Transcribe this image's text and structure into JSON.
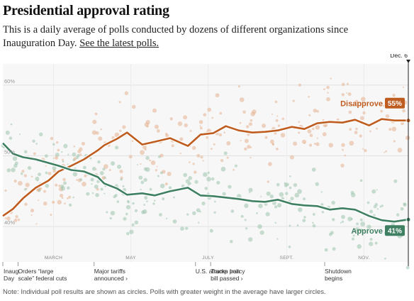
{
  "header": {
    "title": "Presidential approval rating",
    "subtitle": "This is a daily average of polls conducted by dozens of different organizations since Inauguration Day.",
    "link": "See the latest polls."
  },
  "note": "Note: Individual poll results are shown as circles. Polls with greater weight in the average have larger circles.",
  "colors": {
    "approve": "#3f7f62",
    "disapprove": "#bf5c1f",
    "approve_dots": "#9cc4ad",
    "disapprove_dots": "#e6b08e"
  },
  "chart_data": {
    "type": "line",
    "title": "Presidential approval rating",
    "y_unit": "%",
    "ylim": [
      35,
      63
    ],
    "y_ticks": [
      40,
      50,
      60
    ],
    "y_tick_labels": [
      "40%",
      "50%",
      "60%"
    ],
    "x_start": "2025-01-20",
    "x_end": "2025-12-06",
    "end_label": "Dec. 6",
    "month_ticks": [
      {
        "date": "2025-03-01",
        "label": "MARCH"
      },
      {
        "date": "2025-05-01",
        "label": "MAY"
      },
      {
        "date": "2025-07-01",
        "label": "JULY"
      },
      {
        "date": "2025-09-01",
        "label": "SEPT."
      },
      {
        "date": "2025-11-01",
        "label": "NOV."
      }
    ],
    "events": [
      {
        "date": "2025-01-20",
        "lines": [
          "Inaug.",
          "Day"
        ]
      },
      {
        "date": "2025-02-01",
        "lines": [
          "Orders “large",
          "scale” federal cuts"
        ]
      },
      {
        "date": "2025-04-02",
        "lines": [
          "Major tariffs",
          "announced ›"
        ]
      },
      {
        "date": "2025-06-21",
        "lines": [
          "U.S. attacks Iran"
        ]
      },
      {
        "date": "2025-07-03",
        "lines": [
          "Trump policy",
          "bill passed ›"
        ]
      },
      {
        "date": "2025-10-01",
        "lines": [
          "Shutdown",
          "begins"
        ]
      }
    ],
    "series": [
      {
        "name": "Disapprove",
        "end_value": "55%",
        "x": [
          "2025-01-20",
          "2025-01-28",
          "2025-02-05",
          "2025-02-15",
          "2025-02-25",
          "2025-03-05",
          "2025-03-15",
          "2025-03-25",
          "2025-04-05",
          "2025-04-10",
          "2025-04-20",
          "2025-04-28",
          "2025-05-10",
          "2025-05-20",
          "2025-06-01",
          "2025-06-15",
          "2025-06-25",
          "2025-07-05",
          "2025-07-15",
          "2025-07-25",
          "2025-08-05",
          "2025-08-15",
          "2025-08-25",
          "2025-09-05",
          "2025-09-15",
          "2025-09-25",
          "2025-10-05",
          "2025-10-15",
          "2025-10-25",
          "2025-11-05",
          "2025-11-15",
          "2025-11-25",
          "2025-12-06"
        ],
        "y": [
          41.5,
          42.5,
          44.0,
          45.5,
          46.5,
          47.8,
          48.6,
          49.5,
          50.8,
          51.5,
          52.4,
          53.3,
          51.6,
          52.0,
          52.5,
          51.4,
          53.0,
          53.2,
          54.2,
          53.6,
          53.3,
          53.4,
          53.6,
          54.1,
          53.8,
          54.6,
          54.8,
          54.7,
          55.1,
          54.3,
          55.2,
          55.0,
          55.0
        ]
      },
      {
        "name": "Approve",
        "end_value": "41%",
        "x": [
          "2025-01-20",
          "2025-01-28",
          "2025-02-05",
          "2025-02-15",
          "2025-02-25",
          "2025-03-05",
          "2025-03-15",
          "2025-03-25",
          "2025-04-05",
          "2025-04-10",
          "2025-04-20",
          "2025-04-28",
          "2025-05-10",
          "2025-05-20",
          "2025-06-01",
          "2025-06-15",
          "2025-06-25",
          "2025-07-05",
          "2025-07-15",
          "2025-07-25",
          "2025-08-05",
          "2025-08-15",
          "2025-08-25",
          "2025-09-05",
          "2025-09-15",
          "2025-09-25",
          "2025-10-05",
          "2025-10-15",
          "2025-10-25",
          "2025-11-05",
          "2025-11-15",
          "2025-11-25",
          "2025-12-06"
        ],
        "y": [
          51.8,
          50.3,
          49.8,
          49.5,
          49.0,
          48.6,
          48.0,
          47.8,
          47.0,
          46.1,
          45.4,
          44.5,
          44.7,
          44.4,
          45.0,
          45.5,
          44.4,
          44.3,
          44.1,
          43.9,
          43.6,
          43.5,
          43.8,
          43.2,
          43.0,
          42.9,
          42.4,
          42.6,
          42.4,
          41.5,
          40.9,
          40.7,
          41.0
        ]
      }
    ]
  }
}
